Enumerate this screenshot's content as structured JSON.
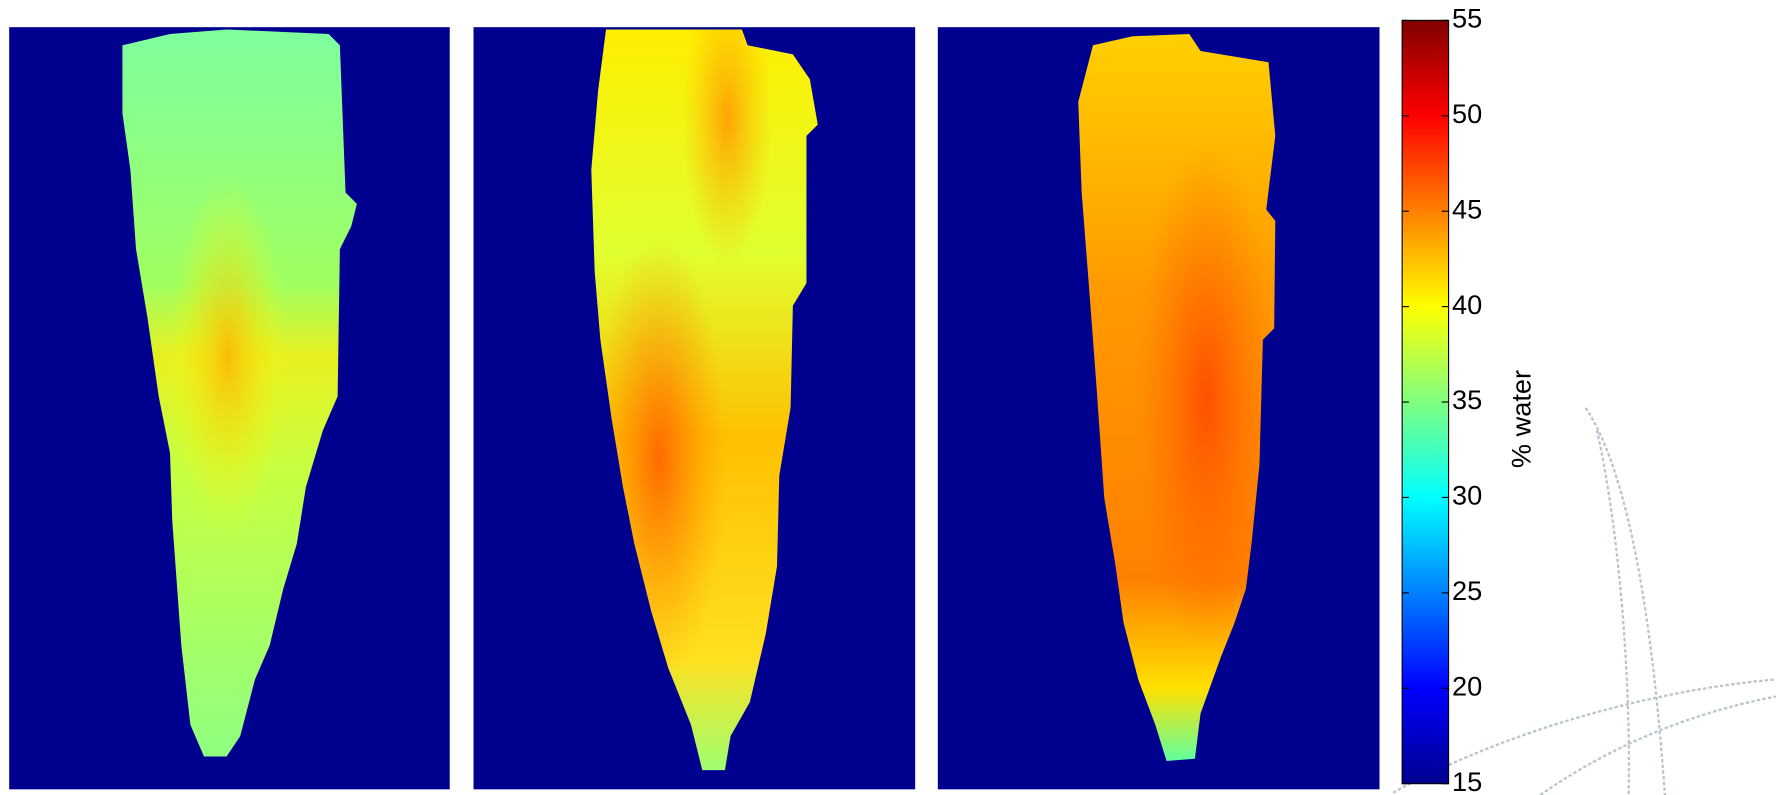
{
  "chart_data": {
    "type": "heatmap",
    "colormap": "jet",
    "colorbar": {
      "label": "% water",
      "lim": [
        15,
        55
      ],
      "ticks": [
        15,
        20,
        25,
        30,
        35,
        40,
        45,
        50,
        55
      ]
    }
  }
}
